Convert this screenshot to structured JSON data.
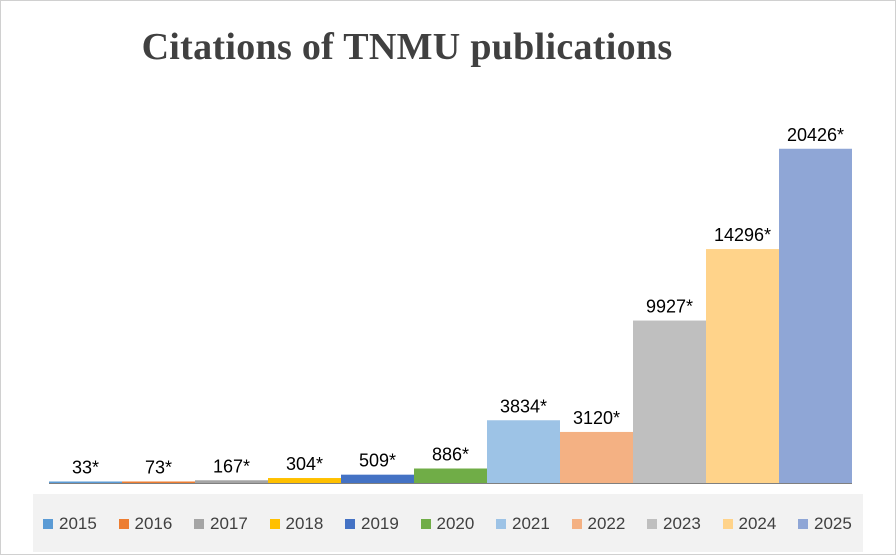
{
  "chart_data": {
    "type": "bar",
    "title": "Citations of TNMU publications",
    "categories": [
      "2015",
      "2016",
      "2017",
      "2018",
      "2019",
      "2020",
      "2021",
      "2022",
      "2023",
      "2024",
      "2025"
    ],
    "values": [
      33,
      73,
      167,
      304,
      509,
      886,
      3834,
      3120,
      9927,
      14296,
      20426
    ],
    "data_labels": [
      "33*",
      "73*",
      "167*",
      "304*",
      "509*",
      "886*",
      "3834*",
      "3120*",
      "9927*",
      "14296*",
      "20426*"
    ],
    "colors": [
      "#5b9bd5",
      "#ed7d31",
      "#a5a5a5",
      "#ffc000",
      "#4472c4",
      "#70ad47",
      "#9dc3e6",
      "#f4b183",
      "#bfbfbf",
      "#ffd38a",
      "#8fa6d6"
    ],
    "ylim": [
      0,
      22000
    ],
    "grid": false,
    "legend_position": "bottom",
    "xlabel": "",
    "ylabel": ""
  }
}
